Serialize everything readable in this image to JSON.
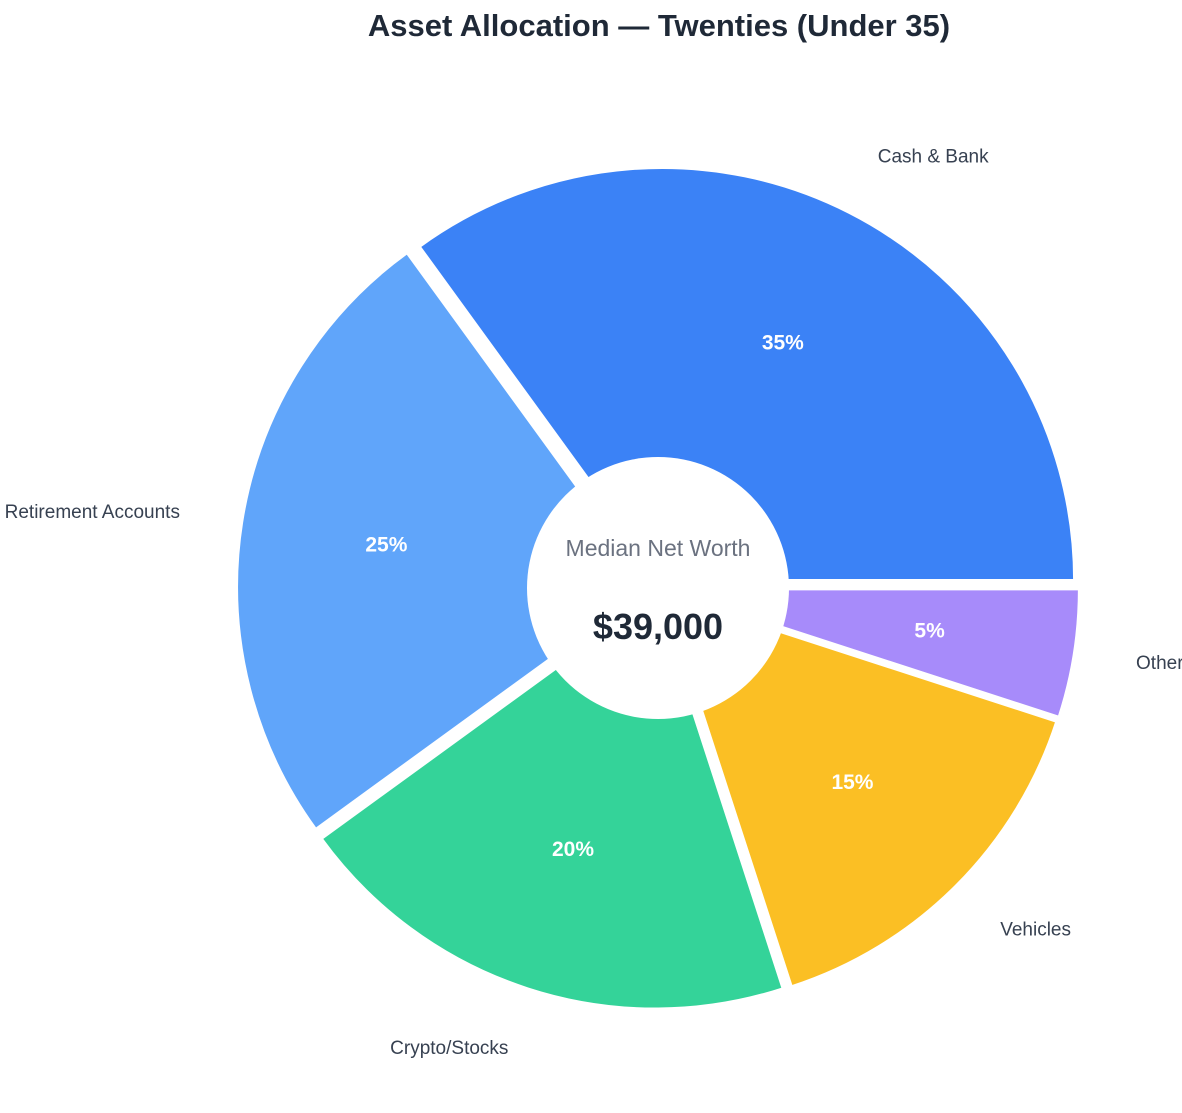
{
  "chart_data": {
    "type": "pie",
    "title": "Asset Allocation — Twenties (Under 35)",
    "categories": [
      "Cash & Bank",
      "Retirement Accounts",
      "Crypto/Stocks",
      "Vehicles",
      "Other"
    ],
    "values": [
      35,
      25,
      20,
      15,
      5
    ],
    "value_labels": [
      "35%",
      "25%",
      "20%",
      "15%",
      "5%"
    ],
    "colors": [
      "#3b82f6",
      "#60a5fa",
      "#34d399",
      "#fbbf24",
      "#a78bfa"
    ],
    "start_angle_deg": 0,
    "direction": "counterclockwise",
    "donut_center": {
      "caption": "Median Net Worth",
      "value": "$39,000"
    }
  }
}
